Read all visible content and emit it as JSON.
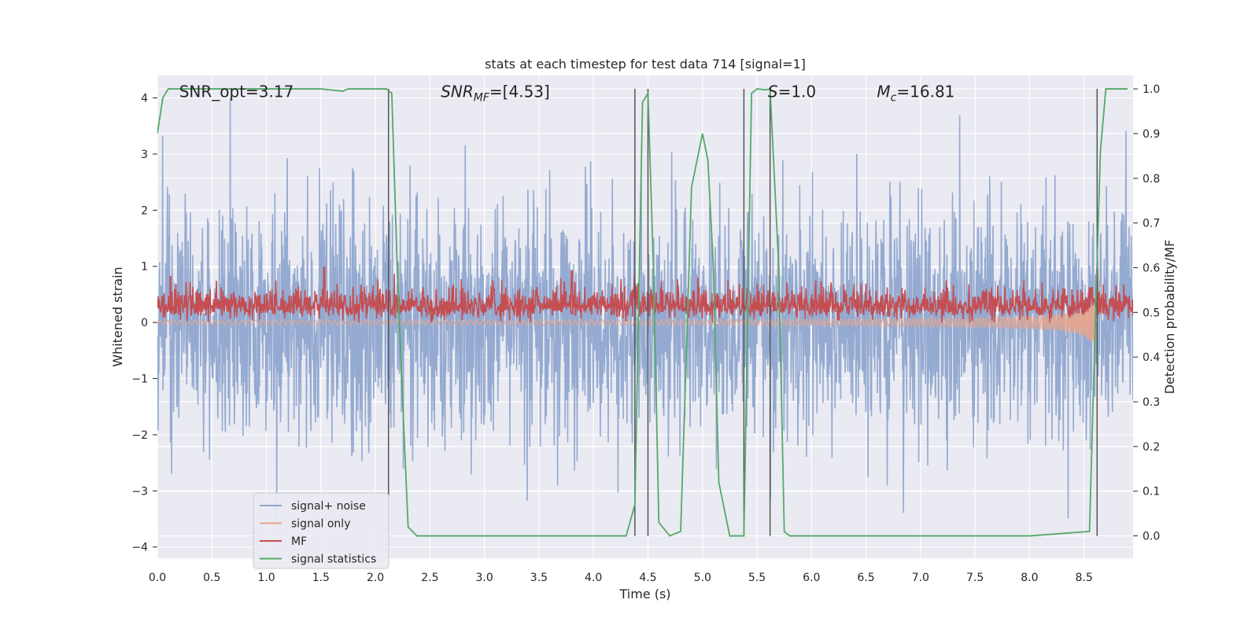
{
  "chart_data": {
    "type": "line",
    "title": "stats at each timestep for test data 714 [signal=1]",
    "xlabel": "Time (s)",
    "ylabel": "Whitened strain",
    "y2label": "Detection probability/MF",
    "xlim": [
      0.0,
      8.95
    ],
    "ylim": [
      -4.2,
      4.4
    ],
    "y2lim": [
      -0.05,
      1.03
    ],
    "x_ticks": [
      "0.0",
      "0.5",
      "1.0",
      "1.5",
      "2.0",
      "2.5",
      "3.0",
      "3.5",
      "4.0",
      "4.5",
      "5.0",
      "5.5",
      "6.0",
      "6.5",
      "7.0",
      "7.5",
      "8.0",
      "8.5"
    ],
    "x_tick_values": [
      0.0,
      0.5,
      1.0,
      1.5,
      2.0,
      2.5,
      3.0,
      3.5,
      4.0,
      4.5,
      5.0,
      5.5,
      6.0,
      6.5,
      7.0,
      7.5,
      8.0,
      8.5
    ],
    "y_ticks": [
      "−4",
      "−3",
      "−2",
      "−1",
      "0",
      "1",
      "2",
      "3",
      "4"
    ],
    "y_tick_values": [
      -4,
      -3,
      -2,
      -1,
      0,
      1,
      2,
      3,
      4
    ],
    "y2_ticks": [
      "0.0",
      "0.1",
      "0.2",
      "0.3",
      "0.4",
      "0.5",
      "0.6",
      "0.7",
      "0.8",
      "0.9",
      "1.0"
    ],
    "y2_tick_values": [
      0.0,
      0.1,
      0.2,
      0.3,
      0.4,
      0.5,
      0.6,
      0.7,
      0.8,
      0.9,
      1.0
    ],
    "grid": true,
    "legend_position": "lower-left",
    "annotations": [
      {
        "text": "SNR_opt=3.17",
        "x": 0.2,
        "y": 4.1
      },
      {
        "text": "SNR_MF=[4.53]",
        "x": 2.6,
        "y": 4.1
      },
      {
        "text": "S=1.0",
        "x": 5.6,
        "y": 4.1
      },
      {
        "text": "M_c=16.81",
        "x": 6.6,
        "y": 4.1
      }
    ],
    "vlines": {
      "x": [
        2.12,
        4.38,
        4.5,
        5.38,
        5.62,
        8.62
      ],
      "y2_range": [
        0.0,
        1.0
      ],
      "color": "#555555"
    },
    "series": [
      {
        "name": "signal+ noise",
        "color": "#8fa6cf",
        "axis": "left",
        "summary": {
          "x_range": [
            0.0,
            8.95
          ],
          "envelope_low": -3.6,
          "envelope_high": 4.0,
          "typical_std": 1.0
        }
      },
      {
        "name": "signal only",
        "color": "#e8a58c",
        "axis": "left",
        "summary": {
          "x_range": [
            0.0,
            8.62
          ],
          "amplitude_start": 0.02,
          "amplitude_end": 0.6,
          "chirp": true
        }
      },
      {
        "name": "MF",
        "color": "#c44e52",
        "axis": "left",
        "summary": {
          "x_range": [
            0.0,
            8.95
          ],
          "baseline": 0.3,
          "range": [
            0.0,
            1.0
          ]
        }
      },
      {
        "name": "signal statistics",
        "color": "#55a868",
        "axis": "right",
        "x": [
          0.0,
          0.05,
          0.1,
          0.5,
          1.0,
          1.5,
          1.7,
          1.75,
          2.0,
          2.1,
          2.15,
          2.2,
          2.25,
          2.3,
          2.38,
          4.3,
          4.38,
          4.45,
          4.5,
          4.55,
          4.6,
          4.7,
          4.8,
          4.9,
          5.0,
          5.05,
          5.1,
          5.15,
          5.25,
          5.35,
          5.38,
          5.45,
          5.5,
          5.58,
          5.62,
          5.7,
          5.75,
          5.8,
          6.0,
          7.0,
          8.0,
          8.55,
          8.6,
          8.65,
          8.7,
          8.75,
          8.8,
          8.9
        ],
        "y": [
          0.9,
          0.98,
          1.0,
          1.0,
          1.0,
          1.0,
          0.995,
          1.0,
          1.0,
          1.0,
          0.99,
          0.6,
          0.3,
          0.02,
          0.0,
          0.0,
          0.07,
          0.97,
          0.99,
          0.6,
          0.03,
          0.0,
          0.01,
          0.78,
          0.9,
          0.84,
          0.6,
          0.12,
          0.0,
          0.0,
          0.0,
          0.99,
          1.0,
          0.998,
          1.0,
          0.6,
          0.01,
          0.0,
          0.0,
          0.0,
          0.0,
          0.01,
          0.45,
          0.86,
          1.0,
          1.0,
          1.0,
          1.0
        ]
      }
    ]
  }
}
